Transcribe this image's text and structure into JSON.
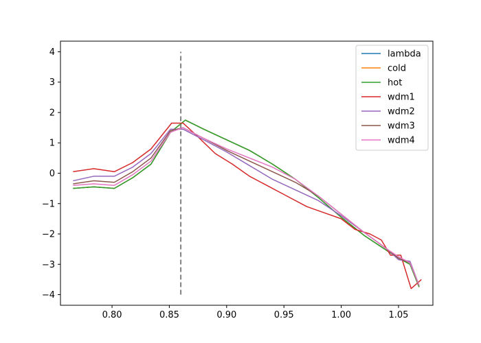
{
  "chart_data": {
    "type": "line",
    "title": "",
    "xlabel": "",
    "ylabel": "",
    "xlim": [
      0.755,
      1.08
    ],
    "ylim": [
      -4.35,
      4.35
    ],
    "xticks": [
      0.8,
      0.85,
      0.9,
      0.95,
      1.0,
      1.05
    ],
    "xtick_labels": [
      "0.80",
      "0.85",
      "0.90",
      "0.95",
      "1.00",
      "1.05"
    ],
    "yticks": [
      -4,
      -3,
      -2,
      -1,
      0,
      1,
      2,
      3,
      4
    ],
    "ytick_labels": [
      "−4",
      "−3",
      "−2",
      "−1",
      "0",
      "1",
      "2",
      "3",
      "4"
    ],
    "grid": false,
    "legend_position": "top-right",
    "vline": {
      "x": 0.86,
      "y_range": [
        -4,
        4
      ],
      "color": "#808080",
      "style": "dashed"
    },
    "series": [
      {
        "name": "lambda",
        "color": "#1f77b4",
        "x": [
          0.766,
          0.784,
          0.802,
          0.818,
          0.834,
          0.851,
          0.864,
          0.88,
          0.9,
          0.92,
          0.94,
          0.96,
          0.98,
          1.0,
          1.02,
          1.04,
          1.05,
          1.06,
          1.068
        ],
        "y": [
          -0.5,
          -0.45,
          -0.5,
          -0.15,
          0.3,
          1.35,
          1.75,
          1.45,
          1.1,
          0.75,
          0.3,
          -0.2,
          -0.8,
          -1.45,
          -2.05,
          -2.55,
          -2.8,
          -3.0,
          -3.75
        ]
      },
      {
        "name": "cold",
        "color": "#ff7f0e",
        "x": [
          0.766,
          0.784,
          0.802,
          0.818,
          0.834,
          0.851,
          0.864,
          0.88,
          0.9,
          0.92,
          0.94,
          0.96,
          0.98,
          1.0,
          1.02,
          1.04,
          1.05,
          1.06,
          1.068
        ],
        "y": [
          -0.5,
          -0.45,
          -0.5,
          -0.15,
          0.3,
          1.35,
          1.75,
          1.45,
          1.1,
          0.75,
          0.3,
          -0.2,
          -0.8,
          -1.45,
          -2.05,
          -2.55,
          -2.8,
          -3.0,
          -3.75
        ]
      },
      {
        "name": "hot",
        "color": "#2ca02c",
        "x": [
          0.766,
          0.784,
          0.802,
          0.818,
          0.834,
          0.851,
          0.864,
          0.88,
          0.9,
          0.92,
          0.94,
          0.96,
          0.98,
          1.0,
          1.02,
          1.04,
          1.05,
          1.06,
          1.068
        ],
        "y": [
          -0.5,
          -0.45,
          -0.5,
          -0.15,
          0.3,
          1.35,
          1.75,
          1.45,
          1.1,
          0.75,
          0.3,
          -0.2,
          -0.8,
          -1.45,
          -2.05,
          -2.55,
          -2.8,
          -3.0,
          -3.75
        ]
      },
      {
        "name": "wdm1",
        "color": "#d62728",
        "x": [
          0.766,
          0.784,
          0.802,
          0.818,
          0.834,
          0.852,
          0.862,
          0.875,
          0.89,
          0.905,
          0.92,
          0.935,
          0.95,
          0.97,
          0.985,
          1.0,
          1.012,
          1.025,
          1.035,
          1.043,
          1.052,
          1.061,
          1.07
        ],
        "y": [
          0.05,
          0.15,
          0.05,
          0.35,
          0.8,
          1.65,
          1.65,
          1.2,
          0.65,
          0.3,
          -0.1,
          -0.4,
          -0.7,
          -1.1,
          -1.3,
          -1.5,
          -1.85,
          -2.0,
          -2.2,
          -2.7,
          -2.7,
          -3.8,
          -3.5
        ]
      },
      {
        "name": "wdm2",
        "color": "#9467bd",
        "x": [
          0.766,
          0.784,
          0.802,
          0.818,
          0.834,
          0.851,
          0.862,
          0.88,
          0.9,
          0.92,
          0.94,
          0.96,
          0.98,
          1.0,
          1.02,
          1.04,
          1.05,
          1.06,
          1.068
        ],
        "y": [
          -0.25,
          -0.1,
          -0.1,
          0.2,
          0.65,
          1.45,
          1.45,
          1.1,
          0.7,
          0.25,
          -0.2,
          -0.55,
          -0.9,
          -1.4,
          -1.95,
          -2.5,
          -2.85,
          -2.9,
          -3.7
        ]
      },
      {
        "name": "wdm3",
        "color": "#8c564b",
        "x": [
          0.766,
          0.784,
          0.802,
          0.818,
          0.834,
          0.851,
          0.862,
          0.88,
          0.9,
          0.92,
          0.94,
          0.96,
          0.98,
          1.0,
          1.02,
          1.04,
          1.05,
          1.06,
          1.068
        ],
        "y": [
          -0.35,
          -0.25,
          -0.3,
          0.05,
          0.5,
          1.4,
          1.5,
          1.15,
          0.75,
          0.4,
          0.05,
          -0.3,
          -0.75,
          -1.35,
          -1.95,
          -2.5,
          -2.8,
          -2.95,
          -3.7
        ]
      },
      {
        "name": "wdm4",
        "color": "#e377c2",
        "x": [
          0.766,
          0.784,
          0.802,
          0.818,
          0.834,
          0.851,
          0.862,
          0.88,
          0.9,
          0.92,
          0.94,
          0.96,
          0.98,
          1.0,
          1.02,
          1.04,
          1.05,
          1.06,
          1.068
        ],
        "y": [
          -0.4,
          -0.35,
          -0.4,
          -0.05,
          0.4,
          1.35,
          1.5,
          1.15,
          0.8,
          0.5,
          0.2,
          -0.2,
          -0.75,
          -1.35,
          -1.95,
          -2.5,
          -2.75,
          -2.95,
          -3.7
        ]
      }
    ]
  }
}
